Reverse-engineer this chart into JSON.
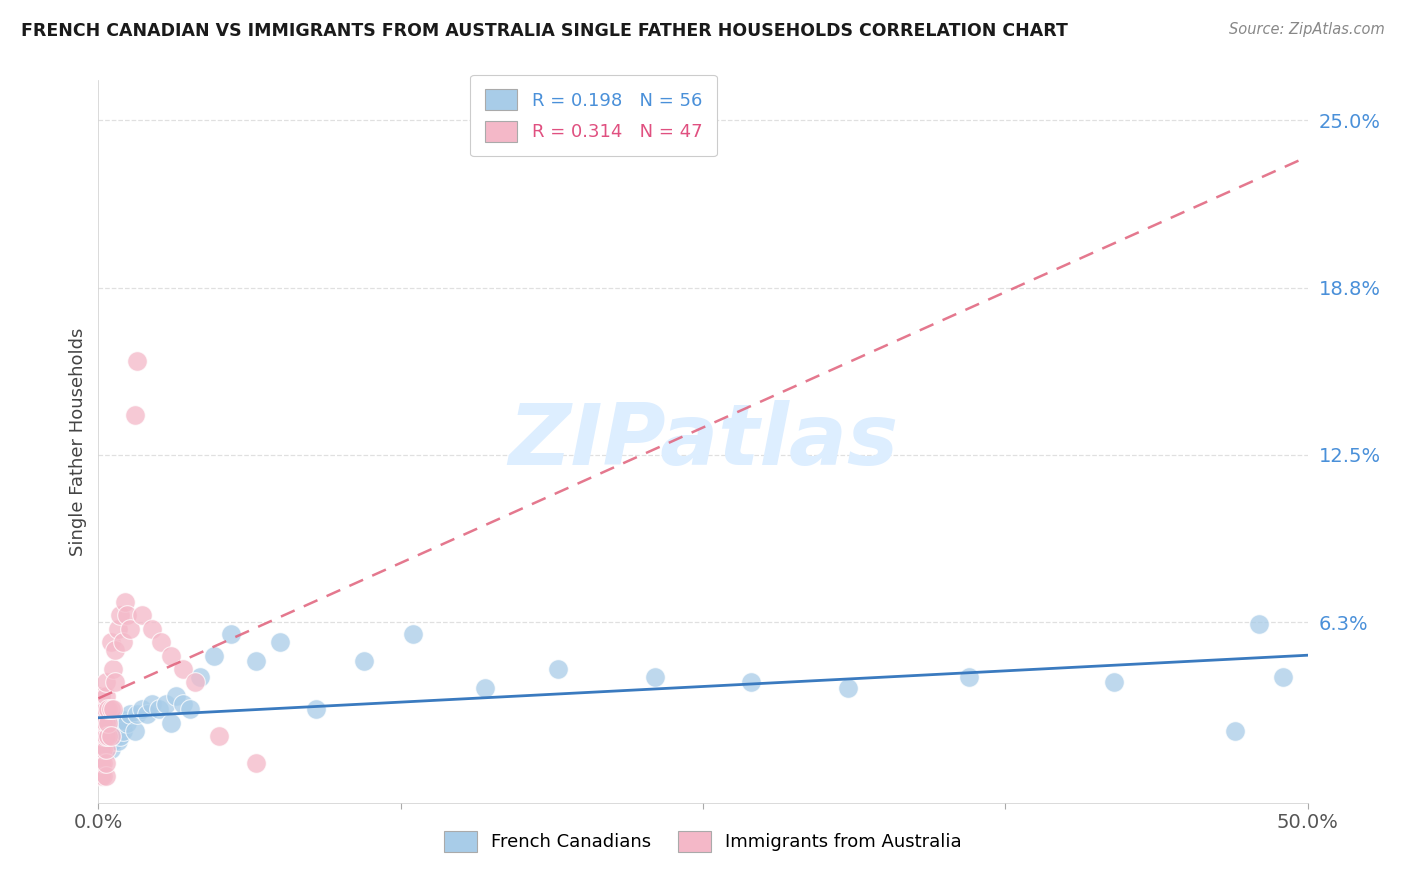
{
  "title": "FRENCH CANADIAN VS IMMIGRANTS FROM AUSTRALIA SINGLE FATHER HOUSEHOLDS CORRELATION CHART",
  "source": "Source: ZipAtlas.com",
  "ylabel": "Single Father Households",
  "xlim": [
    0.0,
    0.5
  ],
  "ylim": [
    -0.005,
    0.265
  ],
  "ytick_vals": [
    0.0,
    0.0625,
    0.125,
    0.1875,
    0.25
  ],
  "ytick_labels": [
    "",
    "6.3%",
    "12.5%",
    "18.8%",
    "25.0%"
  ],
  "xtick_vals": [
    0.0,
    0.125,
    0.25,
    0.375,
    0.5
  ],
  "xtick_labels": [
    "0.0%",
    "",
    "",
    "",
    "50.0%"
  ],
  "blue_R": 0.198,
  "blue_N": 56,
  "pink_R": 0.314,
  "pink_N": 47,
  "blue_scatter_color": "#a8cce8",
  "pink_scatter_color": "#f4b8c8",
  "blue_line_color": "#3a7abf",
  "pink_line_color": "#e0607a",
  "pink_dash_color": "#ccaabb",
  "grid_color": "#dddddd",
  "watermark_color": "#ddeeff",
  "blue_x": [
    0.001,
    0.001,
    0.002,
    0.002,
    0.002,
    0.003,
    0.003,
    0.003,
    0.004,
    0.004,
    0.004,
    0.005,
    0.005,
    0.005,
    0.006,
    0.006,
    0.006,
    0.007,
    0.007,
    0.008,
    0.008,
    0.009,
    0.009,
    0.01,
    0.01,
    0.012,
    0.013,
    0.015,
    0.016,
    0.018,
    0.02,
    0.022,
    0.025,
    0.028,
    0.03,
    0.032,
    0.035,
    0.038,
    0.042,
    0.048,
    0.055,
    0.065,
    0.075,
    0.09,
    0.11,
    0.13,
    0.16,
    0.19,
    0.23,
    0.27,
    0.31,
    0.36,
    0.42,
    0.47,
    0.48,
    0.49
  ],
  "blue_y": [
    0.018,
    0.022,
    0.015,
    0.02,
    0.025,
    0.015,
    0.02,
    0.025,
    0.018,
    0.022,
    0.026,
    0.015,
    0.02,
    0.025,
    0.018,
    0.022,
    0.026,
    0.02,
    0.024,
    0.018,
    0.023,
    0.02,
    0.025,
    0.022,
    0.026,
    0.025,
    0.028,
    0.022,
    0.028,
    0.03,
    0.028,
    0.032,
    0.03,
    0.032,
    0.025,
    0.035,
    0.032,
    0.03,
    0.042,
    0.05,
    0.058,
    0.048,
    0.055,
    0.03,
    0.048,
    0.058,
    0.038,
    0.045,
    0.042,
    0.04,
    0.038,
    0.042,
    0.04,
    0.022,
    0.062,
    0.042
  ],
  "pink_x": [
    0.001,
    0.001,
    0.001,
    0.001,
    0.001,
    0.001,
    0.001,
    0.002,
    0.002,
    0.002,
    0.002,
    0.002,
    0.002,
    0.003,
    0.003,
    0.003,
    0.003,
    0.003,
    0.003,
    0.003,
    0.003,
    0.004,
    0.004,
    0.004,
    0.005,
    0.005,
    0.005,
    0.006,
    0.006,
    0.007,
    0.007,
    0.008,
    0.009,
    0.01,
    0.011,
    0.012,
    0.013,
    0.015,
    0.016,
    0.018,
    0.022,
    0.026,
    0.03,
    0.035,
    0.04,
    0.05,
    0.065
  ],
  "pink_y": [
    0.005,
    0.01,
    0.015,
    0.02,
    0.025,
    0.03,
    0.035,
    0.005,
    0.01,
    0.015,
    0.02,
    0.025,
    0.03,
    0.005,
    0.01,
    0.015,
    0.02,
    0.025,
    0.03,
    0.035,
    0.04,
    0.02,
    0.025,
    0.03,
    0.02,
    0.03,
    0.055,
    0.03,
    0.045,
    0.04,
    0.052,
    0.06,
    0.065,
    0.055,
    0.07,
    0.065,
    0.06,
    0.14,
    0.16,
    0.065,
    0.06,
    0.055,
    0.05,
    0.045,
    0.04,
    0.02,
    0.01
  ],
  "blue_trend_x": [
    0.0,
    0.5
  ],
  "blue_trend_y_intercept": 0.018,
  "blue_trend_slope": 0.088,
  "pink_trend_x": [
    0.0,
    0.5
  ],
  "pink_trend_y_intercept": 0.01,
  "pink_trend_slope": 0.48,
  "legend_label_blue": "R = 0.198   N = 56",
  "legend_label_pink": "R = 0.314   N = 47",
  "legend_blue_text_color": "#4a90d9",
  "legend_pink_text_color": "#e05080",
  "watermark_text": "ZIPatlas"
}
